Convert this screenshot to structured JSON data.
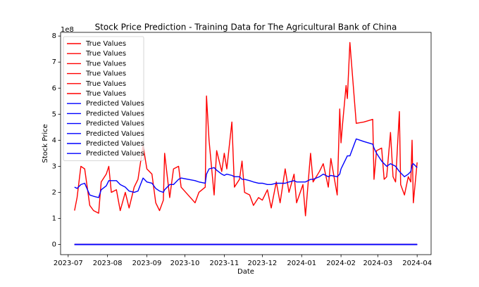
{
  "chart_data": {
    "type": "line",
    "title": "Stock Price Prediction - Training Data for The Agricultural Bank of China",
    "xlabel": "Date",
    "ylabel": "Stock Price",
    "y_offset_label": "1e8",
    "xlim": [
      "2023-06-25",
      "2024-04-12"
    ],
    "xticks": [
      "2023-07",
      "2023-08",
      "2023-09",
      "2023-10",
      "2023-11",
      "2023-12",
      "2024-01",
      "2024-02",
      "2024-03",
      "2024-04"
    ],
    "ylim": [
      -0.39,
      8.14
    ],
    "yticks": [
      0,
      1,
      2,
      3,
      4,
      5,
      6,
      7,
      8
    ],
    "legend": "upper left",
    "grid": false,
    "x": [
      "2023-07-06",
      "2023-07-08",
      "2023-07-11",
      "2023-07-14",
      "2023-07-18",
      "2023-07-21",
      "2023-07-25",
      "2023-07-27",
      "2023-07-31",
      "2023-08-02",
      "2023-08-04",
      "2023-08-08",
      "2023-08-11",
      "2023-08-15",
      "2023-08-18",
      "2023-08-22",
      "2023-08-25",
      "2023-08-29",
      "2023-09-01",
      "2023-09-05",
      "2023-09-08",
      "2023-09-11",
      "2023-09-14",
      "2023-09-15",
      "2023-09-19",
      "2023-09-22",
      "2023-09-26",
      "2023-09-28",
      "2023-10-09",
      "2023-10-12",
      "2023-10-17",
      "2023-10-18",
      "2023-10-20",
      "2023-10-24",
      "2023-10-26",
      "2023-10-30",
      "2023-11-01",
      "2023-11-03",
      "2023-11-07",
      "2023-11-09",
      "2023-11-13",
      "2023-11-15",
      "2023-11-17",
      "2023-11-21",
      "2023-11-24",
      "2023-11-28",
      "2023-12-01",
      "2023-12-05",
      "2023-12-08",
      "2023-12-12",
      "2023-12-15",
      "2023-12-19",
      "2023-12-22",
      "2023-12-26",
      "2023-12-28",
      "2024-01-02",
      "2024-01-04",
      "2024-01-08",
      "2024-01-10",
      "2024-01-15",
      "2024-01-18",
      "2024-01-22",
      "2024-01-24",
      "2024-01-29",
      "2024-01-31",
      "2024-02-01",
      "2024-02-02",
      "2024-02-05",
      "2024-02-06",
      "2024-02-08",
      "2024-02-13",
      "2024-02-19",
      "2024-02-26",
      "2024-02-27",
      "2024-02-29",
      "2024-03-04",
      "2024-03-06",
      "2024-03-08",
      "2024-03-11",
      "2024-03-13",
      "2024-03-15",
      "2024-03-18",
      "2024-03-19",
      "2024-03-22",
      "2024-03-25",
      "2024-03-27",
      "2024-03-28",
      "2024-03-29",
      "2024-04-01"
    ],
    "series": [
      {
        "name": "True Values",
        "color": "#ff0000",
        "values": [
          1.3,
          1.8,
          3.0,
          2.9,
          1.5,
          1.3,
          1.2,
          2.4,
          2.7,
          3.0,
          2.0,
          2.1,
          1.3,
          2.0,
          1.4,
          2.2,
          2.5,
          3.8,
          2.9,
          2.7,
          1.6,
          1.3,
          1.7,
          3.5,
          1.8,
          2.9,
          3.0,
          2.2,
          1.6,
          2.0,
          2.2,
          5.7,
          4.0,
          1.9,
          3.6,
          2.8,
          3.5,
          2.9,
          4.7,
          2.2,
          2.5,
          3.2,
          2.0,
          1.9,
          1.5,
          1.8,
          1.7,
          2.1,
          1.4,
          2.4,
          1.6,
          2.9,
          2.0,
          2.7,
          1.6,
          2.3,
          1.1,
          3.5,
          2.4,
          2.8,
          3.1,
          2.2,
          3.3,
          1.9,
          5.2,
          3.9,
          4.5,
          6.1,
          5.6,
          7.75,
          4.65,
          4.7,
          4.8,
          2.5,
          3.6,
          3.7,
          2.5,
          2.6,
          4.3,
          2.6,
          2.4,
          5.1,
          2.3,
          1.9,
          2.6,
          2.4,
          4.0,
          1.6,
          3.15
        ]
      },
      {
        "name": "True Values",
        "color": "#ff0000",
        "values": [
          0,
          0,
          0,
          0,
          0,
          0,
          0,
          0,
          0,
          0,
          0,
          0,
          0,
          0,
          0,
          0,
          0,
          0,
          0,
          0,
          0,
          0,
          0,
          0,
          0,
          0,
          0,
          0,
          0,
          0,
          0,
          0,
          0,
          0,
          0,
          0,
          0,
          0,
          0,
          0,
          0,
          0,
          0,
          0,
          0,
          0,
          0,
          0,
          0,
          0,
          0,
          0,
          0,
          0,
          0,
          0,
          0,
          0,
          0,
          0,
          0,
          0,
          0,
          0,
          0,
          0,
          0,
          0,
          0,
          0,
          0,
          0,
          0,
          0,
          0,
          0,
          0,
          0,
          0,
          0,
          0,
          0,
          0,
          0,
          0,
          0,
          0,
          0,
          0
        ]
      },
      {
        "name": "True Values",
        "color": "#ff0000",
        "values": [
          0,
          0,
          0,
          0,
          0,
          0,
          0,
          0,
          0,
          0,
          0,
          0,
          0,
          0,
          0,
          0,
          0,
          0,
          0,
          0,
          0,
          0,
          0,
          0,
          0,
          0,
          0,
          0,
          0,
          0,
          0,
          0,
          0,
          0,
          0,
          0,
          0,
          0,
          0,
          0,
          0,
          0,
          0,
          0,
          0,
          0,
          0,
          0,
          0,
          0,
          0,
          0,
          0,
          0,
          0,
          0,
          0,
          0,
          0,
          0,
          0,
          0,
          0,
          0,
          0,
          0,
          0,
          0,
          0,
          0,
          0,
          0,
          0,
          0,
          0,
          0,
          0,
          0,
          0,
          0,
          0,
          0,
          0,
          0,
          0,
          0,
          0,
          0,
          0
        ]
      },
      {
        "name": "True Values",
        "color": "#ff0000",
        "values": [
          0,
          0,
          0,
          0,
          0,
          0,
          0,
          0,
          0,
          0,
          0,
          0,
          0,
          0,
          0,
          0,
          0,
          0,
          0,
          0,
          0,
          0,
          0,
          0,
          0,
          0,
          0,
          0,
          0,
          0,
          0,
          0,
          0,
          0,
          0,
          0,
          0,
          0,
          0,
          0,
          0,
          0,
          0,
          0,
          0,
          0,
          0,
          0,
          0,
          0,
          0,
          0,
          0,
          0,
          0,
          0,
          0,
          0,
          0,
          0,
          0,
          0,
          0,
          0,
          0,
          0,
          0,
          0,
          0,
          0,
          0,
          0,
          0,
          0,
          0,
          0,
          0,
          0,
          0,
          0,
          0,
          0,
          0,
          0,
          0,
          0,
          0,
          0,
          0
        ]
      },
      {
        "name": "True Values",
        "color": "#ff0000",
        "values": [
          0,
          0,
          0,
          0,
          0,
          0,
          0,
          0,
          0,
          0,
          0,
          0,
          0,
          0,
          0,
          0,
          0,
          0,
          0,
          0,
          0,
          0,
          0,
          0,
          0,
          0,
          0,
          0,
          0,
          0,
          0,
          0,
          0,
          0,
          0,
          0,
          0,
          0,
          0,
          0,
          0,
          0,
          0,
          0,
          0,
          0,
          0,
          0,
          0,
          0,
          0,
          0,
          0,
          0,
          0,
          0,
          0,
          0,
          0,
          0,
          0,
          0,
          0,
          0,
          0,
          0,
          0,
          0,
          0,
          0,
          0,
          0,
          0,
          0,
          0,
          0,
          0,
          0,
          0,
          0,
          0,
          0,
          0,
          0,
          0,
          0,
          0,
          0,
          0
        ]
      },
      {
        "name": "True Values",
        "color": "#ff0000",
        "values": [
          0,
          0,
          0,
          0,
          0,
          0,
          0,
          0,
          0,
          0,
          0,
          0,
          0,
          0,
          0,
          0,
          0,
          0,
          0,
          0,
          0,
          0,
          0,
          0,
          0,
          0,
          0,
          0,
          0,
          0,
          0,
          0,
          0,
          0,
          0,
          0,
          0,
          0,
          0,
          0,
          0,
          0,
          0,
          0,
          0,
          0,
          0,
          0,
          0,
          0,
          0,
          0,
          0,
          0,
          0,
          0,
          0,
          0,
          0,
          0,
          0,
          0,
          0,
          0,
          0,
          0,
          0,
          0,
          0,
          0,
          0,
          0,
          0,
          0,
          0,
          0,
          0,
          0,
          0,
          0,
          0,
          0,
          0,
          0,
          0,
          0,
          0,
          0,
          0
        ]
      },
      {
        "name": "Predicted Values",
        "color": "#0000ff",
        "values": [
          2.2,
          2.15,
          2.3,
          2.35,
          1.9,
          1.85,
          1.8,
          2.1,
          2.25,
          2.45,
          2.45,
          2.45,
          2.3,
          2.2,
          2.05,
          2.0,
          2.05,
          2.55,
          2.4,
          2.35,
          2.15,
          2.05,
          2.0,
          2.1,
          2.3,
          2.3,
          2.5,
          2.55,
          2.45,
          2.4,
          2.35,
          2.7,
          2.9,
          2.95,
          2.85,
          2.7,
          2.65,
          2.7,
          2.65,
          2.6,
          2.6,
          2.5,
          2.5,
          2.45,
          2.4,
          2.35,
          2.35,
          2.3,
          2.3,
          2.35,
          2.35,
          2.35,
          2.4,
          2.45,
          2.4,
          2.4,
          2.4,
          2.5,
          2.5,
          2.6,
          2.7,
          2.6,
          2.65,
          2.6,
          2.7,
          2.9,
          3.0,
          3.3,
          3.4,
          3.4,
          4.05,
          3.95,
          3.85,
          3.7,
          3.5,
          3.2,
          3.1,
          3.0,
          3.1,
          3.05,
          3.0,
          2.8,
          2.75,
          2.6,
          2.7,
          2.8,
          3.05,
          3.1,
          2.95
        ]
      },
      {
        "name": "Predicted Values",
        "color": "#0000ff",
        "values": [
          0,
          0,
          0,
          0,
          0,
          0,
          0,
          0,
          0,
          0,
          0,
          0,
          0,
          0,
          0,
          0,
          0,
          0,
          0,
          0,
          0,
          0,
          0,
          0,
          0,
          0,
          0,
          0,
          0,
          0,
          0,
          0,
          0,
          0,
          0,
          0,
          0,
          0,
          0,
          0,
          0,
          0,
          0,
          0,
          0,
          0,
          0,
          0,
          0,
          0,
          0,
          0,
          0,
          0,
          0,
          0,
          0,
          0,
          0,
          0,
          0,
          0,
          0,
          0,
          0,
          0,
          0,
          0,
          0,
          0,
          0,
          0,
          0,
          0,
          0,
          0,
          0,
          0,
          0,
          0,
          0,
          0,
          0,
          0,
          0,
          0,
          0,
          0,
          0
        ]
      },
      {
        "name": "Predicted Values",
        "color": "#0000ff",
        "values": [
          0,
          0,
          0,
          0,
          0,
          0,
          0,
          0,
          0,
          0,
          0,
          0,
          0,
          0,
          0,
          0,
          0,
          0,
          0,
          0,
          0,
          0,
          0,
          0,
          0,
          0,
          0,
          0,
          0,
          0,
          0,
          0,
          0,
          0,
          0,
          0,
          0,
          0,
          0,
          0,
          0,
          0,
          0,
          0,
          0,
          0,
          0,
          0,
          0,
          0,
          0,
          0,
          0,
          0,
          0,
          0,
          0,
          0,
          0,
          0,
          0,
          0,
          0,
          0,
          0,
          0,
          0,
          0,
          0,
          0,
          0,
          0,
          0,
          0,
          0,
          0,
          0,
          0,
          0,
          0,
          0,
          0,
          0,
          0,
          0,
          0,
          0,
          0,
          0
        ]
      },
      {
        "name": "Predicted Values",
        "color": "#0000ff",
        "values": [
          0,
          0,
          0,
          0,
          0,
          0,
          0,
          0,
          0,
          0,
          0,
          0,
          0,
          0,
          0,
          0,
          0,
          0,
          0,
          0,
          0,
          0,
          0,
          0,
          0,
          0,
          0,
          0,
          0,
          0,
          0,
          0,
          0,
          0,
          0,
          0,
          0,
          0,
          0,
          0,
          0,
          0,
          0,
          0,
          0,
          0,
          0,
          0,
          0,
          0,
          0,
          0,
          0,
          0,
          0,
          0,
          0,
          0,
          0,
          0,
          0,
          0,
          0,
          0,
          0,
          0,
          0,
          0,
          0,
          0,
          0,
          0,
          0,
          0,
          0,
          0,
          0,
          0,
          0,
          0,
          0,
          0,
          0,
          0,
          0,
          0,
          0,
          0,
          0
        ]
      },
      {
        "name": "Predicted Values",
        "color": "#0000ff",
        "values": [
          0,
          0,
          0,
          0,
          0,
          0,
          0,
          0,
          0,
          0,
          0,
          0,
          0,
          0,
          0,
          0,
          0,
          0,
          0,
          0,
          0,
          0,
          0,
          0,
          0,
          0,
          0,
          0,
          0,
          0,
          0,
          0,
          0,
          0,
          0,
          0,
          0,
          0,
          0,
          0,
          0,
          0,
          0,
          0,
          0,
          0,
          0,
          0,
          0,
          0,
          0,
          0,
          0,
          0,
          0,
          0,
          0,
          0,
          0,
          0,
          0,
          0,
          0,
          0,
          0,
          0,
          0,
          0,
          0,
          0,
          0,
          0,
          0,
          0,
          0,
          0,
          0,
          0,
          0,
          0,
          0,
          0,
          0,
          0,
          0,
          0,
          0,
          0,
          0
        ]
      },
      {
        "name": "Predicted Values",
        "color": "#0000ff",
        "values": [
          0,
          0,
          0,
          0,
          0,
          0,
          0,
          0,
          0,
          0,
          0,
          0,
          0,
          0,
          0,
          0,
          0,
          0,
          0,
          0,
          0,
          0,
          0,
          0,
          0,
          0,
          0,
          0,
          0,
          0,
          0,
          0,
          0,
          0,
          0,
          0,
          0,
          0,
          0,
          0,
          0,
          0,
          0,
          0,
          0,
          0,
          0,
          0,
          0,
          0,
          0,
          0,
          0,
          0,
          0,
          0,
          0,
          0,
          0,
          0,
          0,
          0,
          0,
          0,
          0,
          0,
          0,
          0,
          0,
          0,
          0,
          0,
          0,
          0,
          0,
          0,
          0,
          0,
          0,
          0,
          0,
          0,
          0,
          0,
          0,
          0,
          0,
          0,
          0
        ]
      }
    ]
  }
}
